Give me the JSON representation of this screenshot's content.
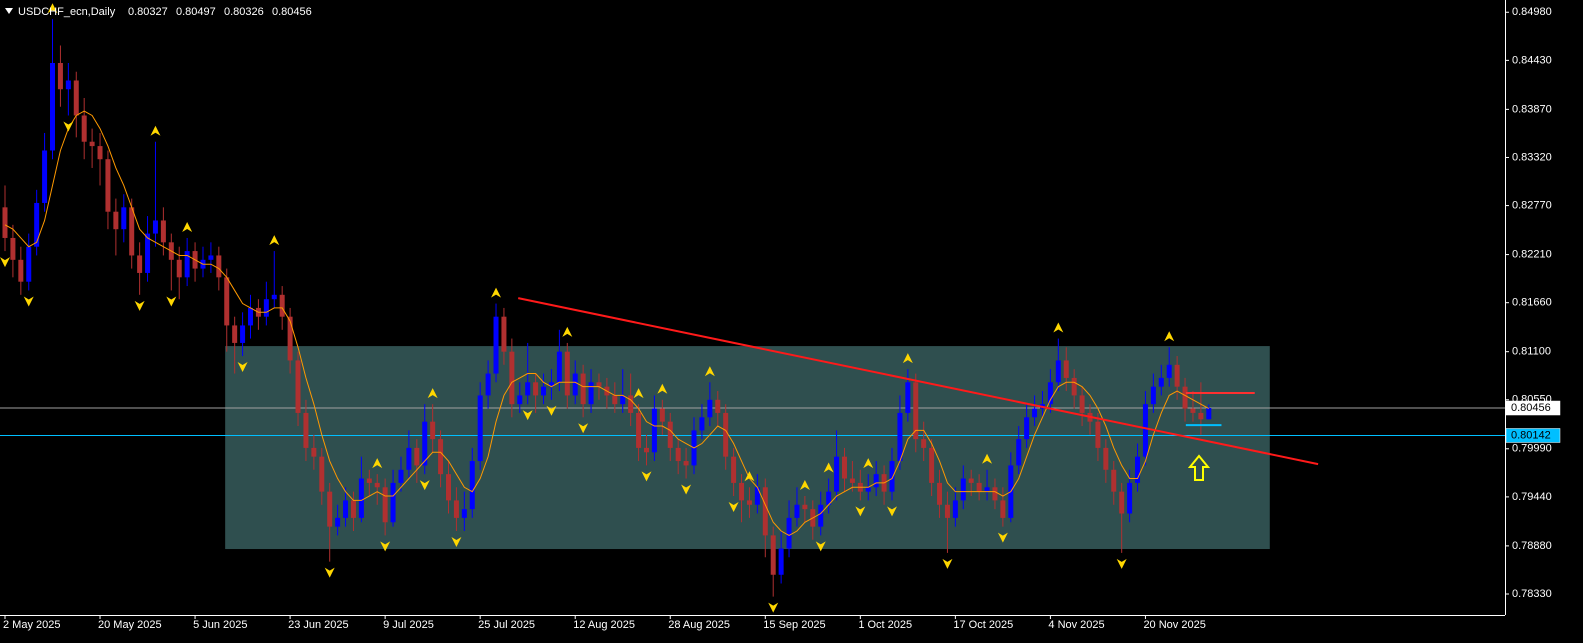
{
  "chart_data": {
    "type": "candlestick",
    "title": "USDCHF_ecn,Daily",
    "bull_color": "#0000ff",
    "bear_color": "#b03030",
    "bg": "#000000",
    "axis_color": "#ffffff",
    "ohlc": [
      [
        0.8275,
        0.83,
        0.8225,
        0.824
      ],
      [
        0.824,
        0.8255,
        0.8195,
        0.8215
      ],
      [
        0.8215,
        0.823,
        0.8175,
        0.819
      ],
      [
        0.819,
        0.8245,
        0.818,
        0.823
      ],
      [
        0.823,
        0.8295,
        0.822,
        0.828
      ],
      [
        0.828,
        0.836,
        0.827,
        0.834
      ],
      [
        0.834,
        0.849,
        0.833,
        0.844
      ],
      [
        0.844,
        0.846,
        0.839,
        0.841
      ],
      [
        0.841,
        0.844,
        0.838,
        0.842
      ],
      [
        0.842,
        0.843,
        0.8355,
        0.838
      ],
      [
        0.838,
        0.84,
        0.833,
        0.835
      ],
      [
        0.835,
        0.8365,
        0.832,
        0.8345
      ],
      [
        0.8345,
        0.836,
        0.83,
        0.833
      ],
      [
        0.833,
        0.834,
        0.825,
        0.827
      ],
      [
        0.827,
        0.8285,
        0.822,
        0.825
      ],
      [
        0.825,
        0.829,
        0.8235,
        0.8275
      ],
      [
        0.8275,
        0.8285,
        0.8205,
        0.822
      ],
      [
        0.822,
        0.8235,
        0.8175,
        0.82
      ],
      [
        0.82,
        0.8265,
        0.819,
        0.8245
      ],
      [
        0.8245,
        0.835,
        0.823,
        0.826
      ],
      [
        0.826,
        0.8275,
        0.822,
        0.8235
      ],
      [
        0.8235,
        0.8245,
        0.818,
        0.8215
      ],
      [
        0.8215,
        0.823,
        0.817,
        0.8195
      ],
      [
        0.8195,
        0.824,
        0.8185,
        0.8225
      ],
      [
        0.8225,
        0.8235,
        0.819,
        0.8205
      ],
      [
        0.8205,
        0.823,
        0.8195,
        0.8215
      ],
      [
        0.8215,
        0.8235,
        0.82,
        0.822
      ],
      [
        0.822,
        0.823,
        0.818,
        0.8195
      ],
      [
        0.8195,
        0.8205,
        0.811,
        0.814
      ],
      [
        0.814,
        0.815,
        0.8085,
        0.812
      ],
      [
        0.812,
        0.8155,
        0.8105,
        0.814
      ],
      [
        0.814,
        0.8175,
        0.8125,
        0.816
      ],
      [
        0.816,
        0.817,
        0.8135,
        0.815
      ],
      [
        0.815,
        0.819,
        0.814,
        0.817
      ],
      [
        0.817,
        0.8225,
        0.816,
        0.8175
      ],
      [
        0.8175,
        0.8185,
        0.8135,
        0.815
      ],
      [
        0.815,
        0.816,
        0.8085,
        0.81
      ],
      [
        0.81,
        0.811,
        0.8025,
        0.804
      ],
      [
        0.804,
        0.8055,
        0.7985,
        0.8
      ],
      [
        0.8,
        0.8015,
        0.7975,
        0.799
      ],
      [
        0.799,
        0.8,
        0.7935,
        0.795
      ],
      [
        0.795,
        0.796,
        0.787,
        0.791
      ],
      [
        0.791,
        0.7935,
        0.79,
        0.792
      ],
      [
        0.792,
        0.7955,
        0.791,
        0.794
      ],
      [
        0.794,
        0.795,
        0.7905,
        0.792
      ],
      [
        0.792,
        0.799,
        0.7915,
        0.7965
      ],
      [
        0.7965,
        0.7975,
        0.7945,
        0.796
      ],
      [
        0.796,
        0.797,
        0.7935,
        0.7955
      ],
      [
        0.7955,
        0.7965,
        0.79,
        0.7915
      ],
      [
        0.7915,
        0.7975,
        0.791,
        0.796
      ],
      [
        0.796,
        0.799,
        0.795,
        0.7975
      ],
      [
        0.7975,
        0.802,
        0.7965,
        0.8
      ],
      [
        0.8,
        0.801,
        0.796,
        0.798
      ],
      [
        0.798,
        0.805,
        0.797,
        0.803
      ],
      [
        0.803,
        0.805,
        0.7995,
        0.801
      ],
      [
        0.801,
        0.802,
        0.7955,
        0.797
      ],
      [
        0.797,
        0.7985,
        0.7925,
        0.794
      ],
      [
        0.794,
        0.7955,
        0.7905,
        0.792
      ],
      [
        0.792,
        0.795,
        0.7905,
        0.793
      ],
      [
        0.793,
        0.8,
        0.792,
        0.7985
      ],
      [
        0.7985,
        0.8075,
        0.7975,
        0.806
      ],
      [
        0.806,
        0.81,
        0.8045,
        0.8085
      ],
      [
        0.8085,
        0.8165,
        0.8075,
        0.815
      ],
      [
        0.815,
        0.816,
        0.8095,
        0.811
      ],
      [
        0.811,
        0.8125,
        0.8035,
        0.805
      ],
      [
        0.805,
        0.8075,
        0.804,
        0.806
      ],
      [
        0.806,
        0.812,
        0.805,
        0.8075
      ],
      [
        0.8075,
        0.8085,
        0.804,
        0.806
      ],
      [
        0.806,
        0.8085,
        0.805,
        0.807
      ],
      [
        0.807,
        0.809,
        0.8055,
        0.8075
      ],
      [
        0.8075,
        0.8135,
        0.8065,
        0.811
      ],
      [
        0.811,
        0.812,
        0.8045,
        0.806
      ],
      [
        0.806,
        0.81,
        0.805,
        0.8085
      ],
      [
        0.8085,
        0.8095,
        0.8035,
        0.805
      ],
      [
        0.805,
        0.809,
        0.804,
        0.8075
      ],
      [
        0.8075,
        0.8085,
        0.8055,
        0.807
      ],
      [
        0.807,
        0.808,
        0.8045,
        0.806
      ],
      [
        0.806,
        0.8075,
        0.804,
        0.805
      ],
      [
        0.805,
        0.809,
        0.804,
        0.806
      ],
      [
        0.806,
        0.8085,
        0.8025,
        0.804
      ],
      [
        0.804,
        0.805,
        0.7985,
        0.8
      ],
      [
        0.8,
        0.8015,
        0.798,
        0.7995
      ],
      [
        0.7995,
        0.806,
        0.7985,
        0.8045
      ],
      [
        0.8045,
        0.8055,
        0.8015,
        0.803
      ],
      [
        0.803,
        0.804,
        0.7985,
        0.8
      ],
      [
        0.8,
        0.801,
        0.797,
        0.7985
      ],
      [
        0.7985,
        0.8,
        0.7965,
        0.798
      ],
      [
        0.798,
        0.8035,
        0.797,
        0.802
      ],
      [
        0.802,
        0.805,
        0.801,
        0.8035
      ],
      [
        0.8035,
        0.8075,
        0.8025,
        0.8055
      ],
      [
        0.8055,
        0.8065,
        0.8025,
        0.804
      ],
      [
        0.804,
        0.805,
        0.7975,
        0.799
      ],
      [
        0.799,
        0.8,
        0.7945,
        0.796
      ],
      [
        0.796,
        0.797,
        0.7915,
        0.794
      ],
      [
        0.794,
        0.7955,
        0.792,
        0.7935
      ],
      [
        0.7935,
        0.797,
        0.7925,
        0.7955
      ],
      [
        0.7955,
        0.7965,
        0.7875,
        0.79
      ],
      [
        0.79,
        0.791,
        0.783,
        0.7855
      ],
      [
        0.7855,
        0.7905,
        0.7845,
        0.7885
      ],
      [
        0.7885,
        0.794,
        0.7875,
        0.792
      ],
      [
        0.792,
        0.7955,
        0.791,
        0.7935
      ],
      [
        0.7935,
        0.7945,
        0.7915,
        0.793
      ],
      [
        0.793,
        0.794,
        0.7895,
        0.791
      ],
      [
        0.791,
        0.795,
        0.79,
        0.7935
      ],
      [
        0.7935,
        0.7965,
        0.7925,
        0.795
      ],
      [
        0.795,
        0.802,
        0.794,
        0.799
      ],
      [
        0.799,
        0.8,
        0.795,
        0.7965
      ],
      [
        0.7965,
        0.7985,
        0.795,
        0.796
      ],
      [
        0.796,
        0.7975,
        0.794,
        0.795
      ],
      [
        0.795,
        0.797,
        0.794,
        0.7955
      ],
      [
        0.7955,
        0.7985,
        0.7945,
        0.797
      ],
      [
        0.797,
        0.798,
        0.7935,
        0.795
      ],
      [
        0.795,
        0.8,
        0.794,
        0.7985
      ],
      [
        0.7985,
        0.806,
        0.7975,
        0.804
      ],
      [
        0.804,
        0.809,
        0.803,
        0.8075
      ],
      [
        0.8075,
        0.8085,
        0.7995,
        0.801
      ],
      [
        0.801,
        0.803,
        0.7985,
        0.8
      ],
      [
        0.8,
        0.801,
        0.7945,
        0.796
      ],
      [
        0.796,
        0.7975,
        0.792,
        0.7935
      ],
      [
        0.7935,
        0.795,
        0.788,
        0.792
      ],
      [
        0.792,
        0.7955,
        0.791,
        0.794
      ],
      [
        0.794,
        0.798,
        0.793,
        0.7965
      ],
      [
        0.7965,
        0.7975,
        0.7945,
        0.796
      ],
      [
        0.796,
        0.797,
        0.794,
        0.795
      ],
      [
        0.795,
        0.7975,
        0.794,
        0.7955
      ],
      [
        0.7955,
        0.7965,
        0.793,
        0.794
      ],
      [
        0.794,
        0.7955,
        0.791,
        0.792
      ],
      [
        0.792,
        0.7995,
        0.7915,
        0.798
      ],
      [
        0.798,
        0.8025,
        0.797,
        0.801
      ],
      [
        0.801,
        0.805,
        0.8,
        0.8035
      ],
      [
        0.8035,
        0.806,
        0.8025,
        0.8045
      ],
      [
        0.8045,
        0.8065,
        0.8035,
        0.805
      ],
      [
        0.805,
        0.809,
        0.804,
        0.8075
      ],
      [
        0.8075,
        0.8125,
        0.8065,
        0.81
      ],
      [
        0.81,
        0.8115,
        0.8065,
        0.808
      ],
      [
        0.808,
        0.809,
        0.8045,
        0.806
      ],
      [
        0.806,
        0.807,
        0.8025,
        0.804
      ],
      [
        0.804,
        0.805,
        0.8015,
        0.803
      ],
      [
        0.803,
        0.804,
        0.7985,
        0.8
      ],
      [
        0.8,
        0.801,
        0.796,
        0.7975
      ],
      [
        0.7975,
        0.7985,
        0.7935,
        0.795
      ],
      [
        0.795,
        0.796,
        0.788,
        0.7925
      ],
      [
        0.7925,
        0.7975,
        0.7915,
        0.796
      ],
      [
        0.796,
        0.8005,
        0.795,
        0.799
      ],
      [
        0.799,
        0.8065,
        0.798,
        0.805
      ],
      [
        0.805,
        0.8085,
        0.804,
        0.807
      ],
      [
        0.807,
        0.8095,
        0.806,
        0.808
      ],
      [
        0.808,
        0.8115,
        0.807,
        0.8095
      ],
      [
        0.8095,
        0.8105,
        0.8055,
        0.807
      ],
      [
        0.807,
        0.808,
        0.803,
        0.8045
      ],
      [
        0.8045,
        0.8065,
        0.803,
        0.804
      ],
      [
        0.804,
        0.8075,
        0.8015,
        0.80327
      ],
      [
        0.80327,
        0.80497,
        0.80326,
        0.80456
      ]
    ],
    "ma": {
      "color": "#ff9900",
      "values": [
        0.8255,
        0.825,
        0.824,
        0.823,
        0.8235,
        0.826,
        0.83,
        0.834,
        0.8365,
        0.838,
        0.8385,
        0.838,
        0.8365,
        0.8345,
        0.832,
        0.83,
        0.8275,
        0.825,
        0.824,
        0.8235,
        0.823,
        0.8225,
        0.822,
        0.822,
        0.8215,
        0.821,
        0.821,
        0.8205,
        0.8195,
        0.818,
        0.8165,
        0.816,
        0.8155,
        0.8155,
        0.816,
        0.816,
        0.8145,
        0.8115,
        0.808,
        0.805,
        0.8015,
        0.7985,
        0.7965,
        0.795,
        0.794,
        0.794,
        0.7945,
        0.795,
        0.7945,
        0.7945,
        0.7955,
        0.7965,
        0.7975,
        0.7985,
        0.7995,
        0.7995,
        0.7985,
        0.797,
        0.7955,
        0.795,
        0.7965,
        0.799,
        0.803,
        0.806,
        0.8075,
        0.808,
        0.8085,
        0.8085,
        0.8075,
        0.807,
        0.8075,
        0.8075,
        0.8075,
        0.807,
        0.807,
        0.807,
        0.8065,
        0.806,
        0.806,
        0.8055,
        0.8045,
        0.803,
        0.8025,
        0.8025,
        0.802,
        0.801,
        0.8005,
        0.8,
        0.8005,
        0.8015,
        0.8025,
        0.802,
        0.8005,
        0.7985,
        0.7965,
        0.7955,
        0.7935,
        0.7915,
        0.7905,
        0.79,
        0.7905,
        0.7915,
        0.792,
        0.7925,
        0.7935,
        0.7945,
        0.795,
        0.7955,
        0.7955,
        0.7955,
        0.796,
        0.796,
        0.7965,
        0.7985,
        0.801,
        0.802,
        0.802,
        0.8005,
        0.7985,
        0.796,
        0.795,
        0.795,
        0.795,
        0.795,
        0.795,
        0.795,
        0.7945,
        0.795,
        0.7965,
        0.799,
        0.8015,
        0.8035,
        0.8055,
        0.807,
        0.8075,
        0.8075,
        0.807,
        0.806,
        0.8045,
        0.8025,
        0.8,
        0.798,
        0.7965,
        0.7965,
        0.7985,
        0.8015,
        0.804,
        0.806,
        0.8065,
        0.806,
        0.8055,
        0.805,
        0.8045
      ]
    },
    "fractal_color": "#ffd700",
    "fractals_up": [
      6,
      19,
      23,
      34,
      47,
      54,
      62,
      71,
      80,
      83,
      89,
      94,
      101,
      104,
      109,
      114,
      124,
      133,
      147
    ],
    "fractals_down": [
      0,
      3,
      8,
      17,
      21,
      30,
      41,
      48,
      53,
      57,
      66,
      69,
      73,
      81,
      86,
      92,
      97,
      103,
      108,
      112,
      119,
      126,
      141
    ],
    "xlim": [
      -0.63,
      189.4
    ],
    "xticks": [
      {
        "value": 0,
        "label": "2 May 2025"
      },
      {
        "value": 12,
        "label": "20 May 2025"
      },
      {
        "value": 24,
        "label": "5 Jun 2025"
      },
      {
        "value": 36,
        "label": "23 Jun 2025"
      },
      {
        "value": 48,
        "label": "9 Jul 2025"
      },
      {
        "value": 60,
        "label": "25 Jul 2025"
      },
      {
        "value": 72,
        "label": "12 Aug 2025"
      },
      {
        "value": 84,
        "label": "28 Aug 2025"
      },
      {
        "value": 96,
        "label": "15 Sep 2025"
      },
      {
        "value": 108,
        "label": "1 Oct 2025"
      },
      {
        "value": 120,
        "label": "17 Oct 2025"
      },
      {
        "value": 132,
        "label": "4 Nov 2025"
      },
      {
        "value": 144,
        "label": "20 Nov 2025"
      }
    ],
    "ylim": [
      0.7809,
      0.8512
    ],
    "yticks": [
      {
        "value": 0.8498,
        "label": "0.84980"
      },
      {
        "value": 0.8443,
        "label": "0.84430"
      },
      {
        "value": 0.8387,
        "label": "0.83870"
      },
      {
        "value": 0.8332,
        "label": "0.83320"
      },
      {
        "value": 0.8277,
        "label": "0.82770"
      },
      {
        "value": 0.8221,
        "label": "0.82210"
      },
      {
        "value": 0.8166,
        "label": "0.81660"
      },
      {
        "value": 0.811,
        "label": "0.81100"
      },
      {
        "value": 0.8055,
        "label": "0.80550"
      },
      {
        "value": 0.7999,
        "label": "0.79990"
      },
      {
        "value": 0.7944,
        "label": "0.79440"
      },
      {
        "value": 0.7888,
        "label": "0.78880"
      },
      {
        "value": 0.7833,
        "label": "0.78330"
      }
    ],
    "last_line_color": "#a0a0a0",
    "zones": [
      {
        "x": [
          27.8,
          159.7
        ],
        "y": [
          0.78844,
          0.81164
        ],
        "color": "#2f4f4f"
      }
    ],
    "trendlines": [
      {
        "x": [
          64.8,
          165.8
        ],
        "y": [
          0.81712,
          0.79815
        ],
        "color": "#ff1a1a"
      }
    ],
    "hlines": [
      {
        "value": 0.80142,
        "color": "#00bfff"
      }
    ],
    "segments": [
      {
        "x": [
          149.1,
          157.8
        ],
        "y": 0.80627,
        "color": "#ff3030"
      },
      {
        "x": [
          149.1,
          153.6
        ],
        "y": 0.80261,
        "color": "#00bfff"
      }
    ]
  }
}
